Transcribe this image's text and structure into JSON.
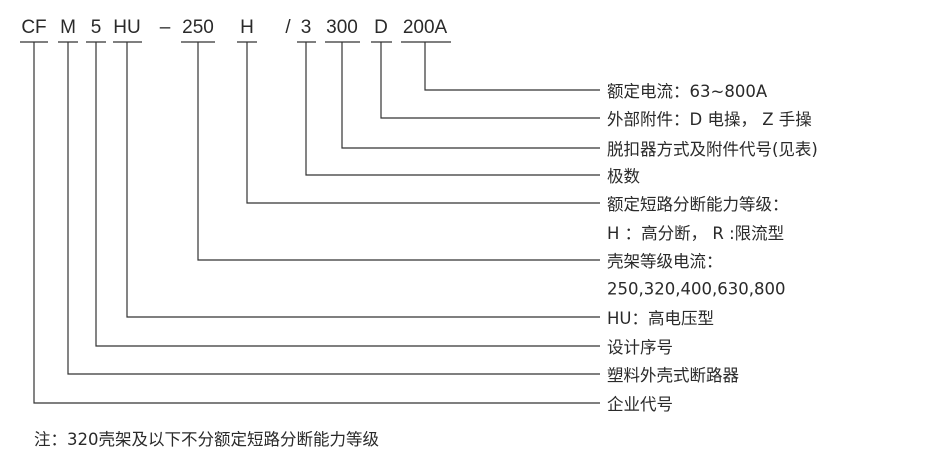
{
  "code_parts": [
    "CF",
    "M",
    "5",
    "HU",
    "–",
    "250",
    "H",
    "/",
    "3",
    "300",
    "D",
    "200A"
  ],
  "labels": [
    "额定电流：63~800A",
    "外部附件：D 电操， Z 手操",
    "脱扣器方式及附件代号(见表)",
    "极数",
    "额定短路分断能力等级：",
    "H ：高分断， R :限流型",
    "壳架等级电流：",
    "250,320,400,630,800",
    "HU：高电压型",
    "设计序号",
    "塑料外壳式断路器",
    "企业代号"
  ],
  "note": "注：320壳架及以下不分额定短路分断能力等级"
}
